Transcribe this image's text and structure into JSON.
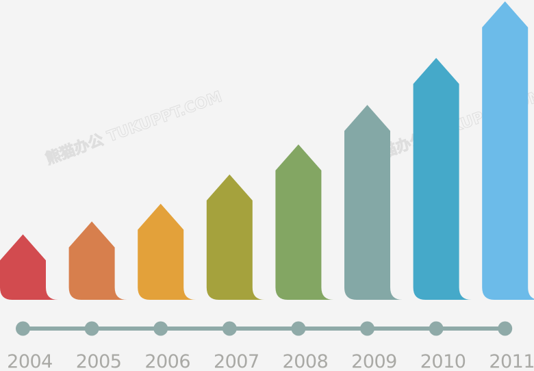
{
  "chart_data": {
    "type": "bar",
    "categories": [
      "2004",
      "2005",
      "2006",
      "2007",
      "2008",
      "2009",
      "2010",
      "2011"
    ],
    "values": [
      96,
      115,
      141,
      184,
      228,
      286,
      355,
      438
    ],
    "ylim": [
      0,
      440
    ],
    "grid": false,
    "legend": "none",
    "colors": [
      "#d24b4f",
      "#d77f4d",
      "#e3a13a",
      "#a5a23d",
      "#83a663",
      "#84a8a6",
      "#45a9c9",
      "#6cbbe9"
    ],
    "timeline_color": "#8faaa8"
  },
  "watermarks": [
    "熊猫办公 TUKUPPT.COM",
    "熊猫办公 TUKUPPT.COM"
  ]
}
